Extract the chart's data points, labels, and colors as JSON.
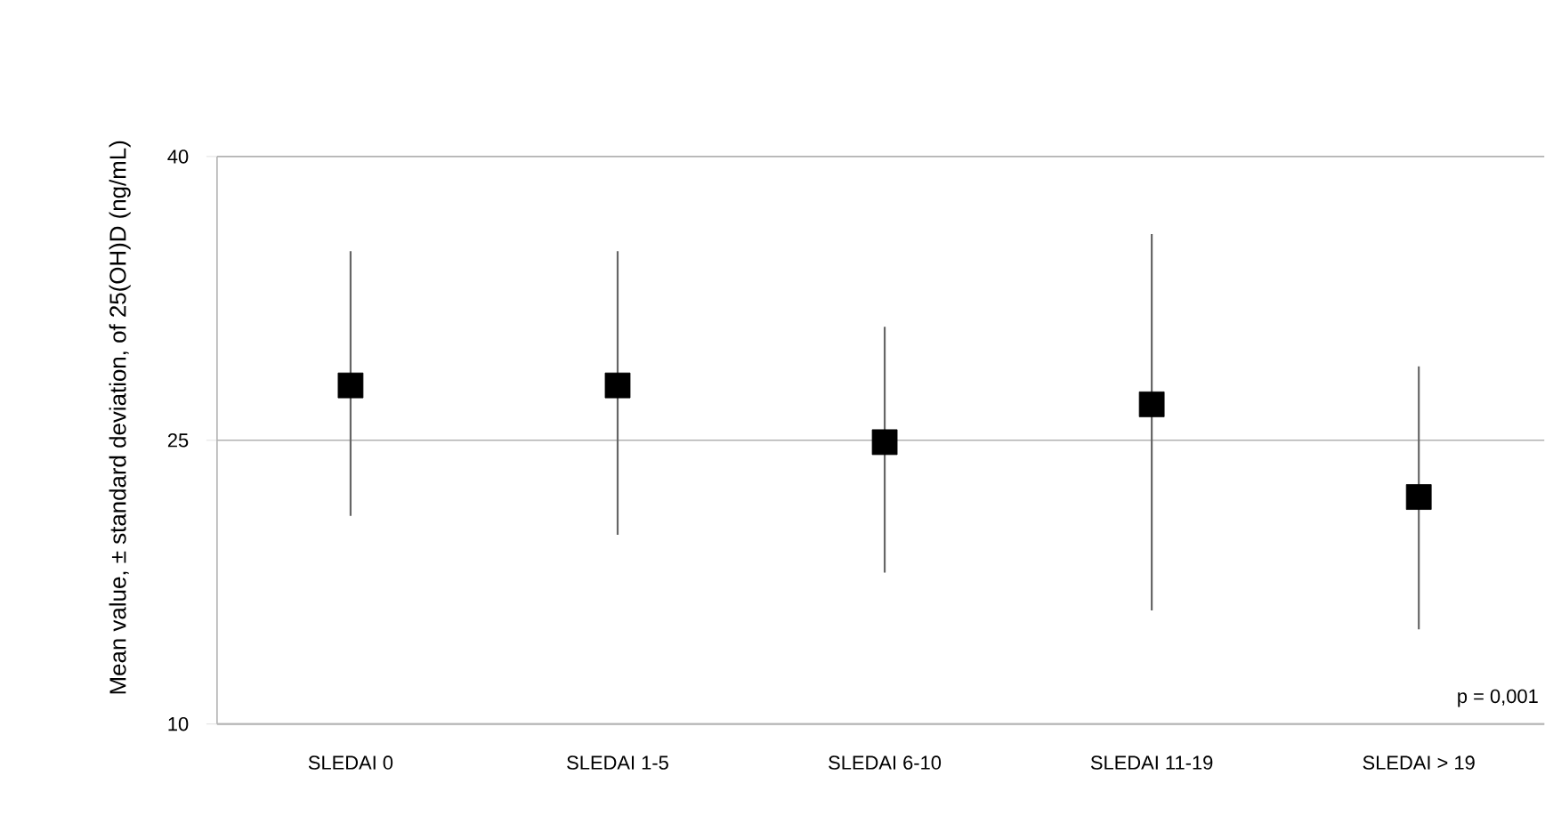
{
  "chart_data": {
    "type": "scatter",
    "ylabel": "Mean value, ± standard deviation, of 25(OH)D (ng/mL)",
    "categories": [
      "SLEDAI 0",
      "SLEDAI 1-5",
      "SLEDAI 6-10",
      "SLEDAI 11-19",
      "SLEDAI > 19"
    ],
    "values": [
      27.9,
      27.9,
      24.9,
      26.9,
      22.0
    ],
    "errors": [
      [
        21.0,
        35.0
      ],
      [
        20.0,
        35.0
      ],
      [
        18.0,
        31.0
      ],
      [
        16.0,
        35.9
      ],
      [
        15.0,
        28.9
      ]
    ],
    "color": "#000000",
    "marker": "square",
    "ylim": [
      10,
      40
    ],
    "yticks": [
      10,
      25,
      40
    ],
    "grid": "y",
    "annotations": [
      "p = 0,001"
    ]
  }
}
